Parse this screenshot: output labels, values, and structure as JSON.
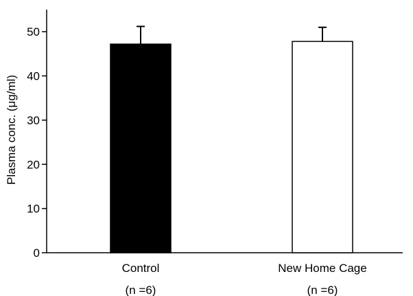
{
  "chart_data": {
    "type": "bar",
    "categories": [
      "Control",
      "New Home Cage"
    ],
    "category_sublabels": [
      "(n =6)",
      "(n =6)"
    ],
    "values": [
      47.2,
      47.8
    ],
    "error_upper": [
      51.2,
      51.0
    ],
    "bar_fill": [
      "#000000",
      "#ffffff"
    ],
    "ylabel": "Plasma conc. (μg/ml)",
    "ylim": [
      0,
      55
    ],
    "yticks": [
      0,
      10,
      20,
      30,
      40,
      50
    ],
    "legend": "none",
    "grid": false
  }
}
